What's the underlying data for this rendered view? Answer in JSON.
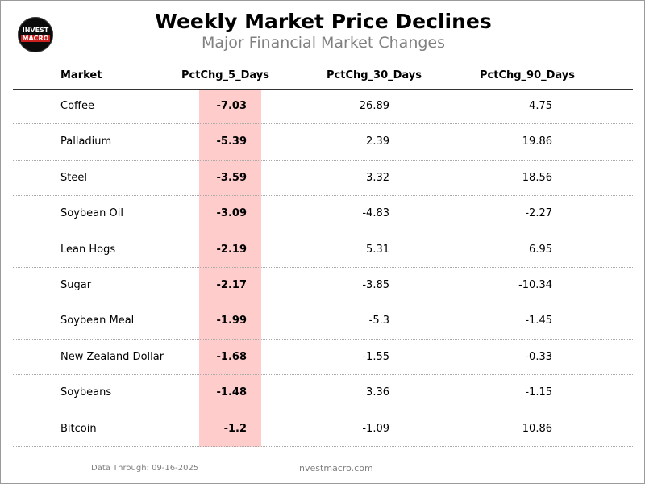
{
  "header": {
    "title": "Weekly Market Price Declines",
    "subtitle": "Major Financial Market Changes"
  },
  "logo": {
    "line1": "INVEST",
    "line2": "MACRO",
    "accent_color": "#cc1f1f",
    "background_color": "#0b0b0b"
  },
  "footer": {
    "data_through": "Data Through: 09-16-2025",
    "site": "investmacro.com"
  },
  "colors": {
    "highlight": "#ffcccc",
    "muted_text": "#808080"
  },
  "chart_data": {
    "type": "table",
    "title": "Weekly Market Price Declines",
    "subtitle": "Major Financial Market Changes",
    "columns": [
      "Market",
      "PctChg_5_Days",
      "PctChg_30_Days",
      "PctChg_90_Days"
    ],
    "highlighted_column": "PctChg_5_Days",
    "rows": [
      {
        "market": "Coffee",
        "p5": "-7.03",
        "p30": "26.89",
        "p90": "4.75"
      },
      {
        "market": "Palladium",
        "p5": "-5.39",
        "p30": "2.39",
        "p90": "19.86"
      },
      {
        "market": "Steel",
        "p5": "-3.59",
        "p30": "3.32",
        "p90": "18.56"
      },
      {
        "market": "Soybean Oil",
        "p5": "-3.09",
        "p30": "-4.83",
        "p90": "-2.27"
      },
      {
        "market": "Lean Hogs",
        "p5": "-2.19",
        "p30": "5.31",
        "p90": "6.95"
      },
      {
        "market": "Sugar",
        "p5": "-2.17",
        "p30": "-3.85",
        "p90": "-10.34"
      },
      {
        "market": "Soybean Meal",
        "p5": "-1.99",
        "p30": "-5.3",
        "p90": "-1.45"
      },
      {
        "market": "New Zealand Dollar",
        "p5": "-1.68",
        "p30": "-1.55",
        "p90": "-0.33"
      },
      {
        "market": "Soybeans",
        "p5": "-1.48",
        "p30": "3.36",
        "p90": "-1.15"
      },
      {
        "market": "Bitcoin",
        "p5": "-1.2",
        "p30": "-1.09",
        "p90": "10.86"
      }
    ]
  }
}
